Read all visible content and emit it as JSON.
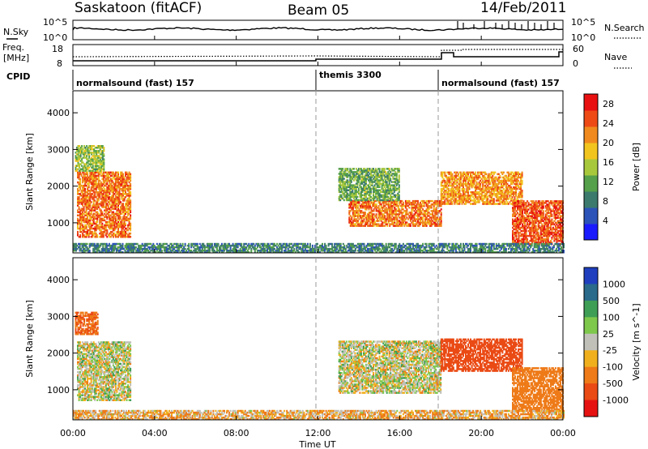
{
  "header": {
    "station": "Saskatoon (fitACF)",
    "beam": "Beam 05",
    "date": "14/Feb/2011"
  },
  "side_labels": {
    "nsky": "N.Sky",
    "nsky_top": "10^5",
    "nsky_bottom": "10^0",
    "nsearch": "N.Search",
    "nsearch_top": "10^5",
    "nsearch_bottom": "10^0",
    "freq": "Freq.",
    "freq_unit": "[MHz]",
    "freq_top": "18",
    "freq_bottom": "8",
    "nave": "Nave",
    "nave_top": "60",
    "nave_bottom": "0",
    "cpid": "CPID"
  },
  "cpid_segments": [
    {
      "label": "normalsound (fast) 157",
      "start_hour": 0,
      "end_hour": 12
    },
    {
      "label": "themis 3300",
      "start_hour": 12,
      "end_hour": 18
    },
    {
      "label": "normalsound (fast) 157",
      "start_hour": 18,
      "end_hour": 24
    }
  ],
  "x_axis": {
    "label": "Time UT",
    "ticks": [
      "00:00",
      "04:00",
      "08:00",
      "12:00",
      "16:00",
      "20:00",
      "00:00"
    ],
    "range_hours": [
      0,
      24
    ]
  },
  "colors": {
    "power_scale": [
      "#1a1aff",
      "#2c53b8",
      "#3c7a6e",
      "#55a04a",
      "#a8c83c",
      "#f2c41e",
      "#f08a1e",
      "#ee4a16",
      "#e81010"
    ],
    "velocity_scale": [
      "#1f3fbf",
      "#2a6a8a",
      "#3f9e56",
      "#7ec84c",
      "#c0c0b8",
      "#f0b01e",
      "#ee7a18",
      "#ea4a14",
      "#e61212"
    ]
  },
  "chart_data": [
    {
      "type": "heatmap",
      "panel": "power",
      "title": "",
      "xlabel": "",
      "ylabel": "Slant Range [km]",
      "xlim": [
        0,
        24
      ],
      "ylim": [
        180,
        4600
      ],
      "y_ticks": [
        "1000",
        "2000",
        "3000",
        "4000"
      ],
      "colorbar_label": "Power [dB]",
      "colorbar_ticks": [
        "4",
        "8",
        "12",
        "16",
        "20",
        "24",
        "28"
      ],
      "colorbar_range": [
        0,
        30
      ],
      "regions": [
        {
          "hour_start": 0.2,
          "hour_end": 2.8,
          "range_start": 600,
          "range_end": 2400,
          "level": 24
        },
        {
          "hour_start": 0.1,
          "hour_end": 1.5,
          "range_start": 2400,
          "range_end": 3100,
          "level": 14
        },
        {
          "hour_start": 13.5,
          "hour_end": 18.0,
          "range_start": 900,
          "range_end": 1600,
          "level": 24
        },
        {
          "hour_start": 13.0,
          "hour_end": 16.0,
          "range_start": 1600,
          "range_end": 2500,
          "level": 12
        },
        {
          "hour_start": 18.0,
          "hour_end": 22.0,
          "range_start": 1500,
          "range_end": 2400,
          "level": 22
        },
        {
          "hour_start": 21.5,
          "hour_end": 24.0,
          "range_start": 400,
          "range_end": 1600,
          "level": 26
        },
        {
          "hour_start": 0.0,
          "hour_end": 24.0,
          "range_start": 180,
          "range_end": 450,
          "level": 8
        }
      ]
    },
    {
      "type": "heatmap",
      "panel": "velocity",
      "title": "",
      "xlabel": "Time UT",
      "ylabel": "Slant Range [km]",
      "xlim": [
        0,
        24
      ],
      "ylim": [
        180,
        4600
      ],
      "y_ticks": [
        "1000",
        "2000",
        "3000",
        "4000"
      ],
      "colorbar_label": "Velocity [m s^-1]",
      "colorbar_ticks": [
        "1000",
        "500",
        "100",
        "25",
        "-25",
        "-100",
        "-500",
        "-1000"
      ],
      "regions": [
        {
          "hour_start": 0.2,
          "hour_end": 2.8,
          "range_start": 700,
          "range_end": 2300,
          "velocity": 0
        },
        {
          "hour_start": 0.1,
          "hour_end": 1.2,
          "range_start": 2500,
          "range_end": 3100,
          "velocity": -300
        },
        {
          "hour_start": 13.0,
          "hour_end": 18.0,
          "range_start": 900,
          "range_end": 2300,
          "velocity": 0
        },
        {
          "hour_start": 18.0,
          "hour_end": 22.0,
          "range_start": 1500,
          "range_end": 2400,
          "velocity": -500
        },
        {
          "hour_start": 21.5,
          "hour_end": 24.0,
          "range_start": 400,
          "range_end": 1600,
          "velocity": -200
        },
        {
          "hour_start": 0.0,
          "hour_end": 24.0,
          "range_start": 180,
          "range_end": 450,
          "velocity": -50
        }
      ]
    }
  ]
}
